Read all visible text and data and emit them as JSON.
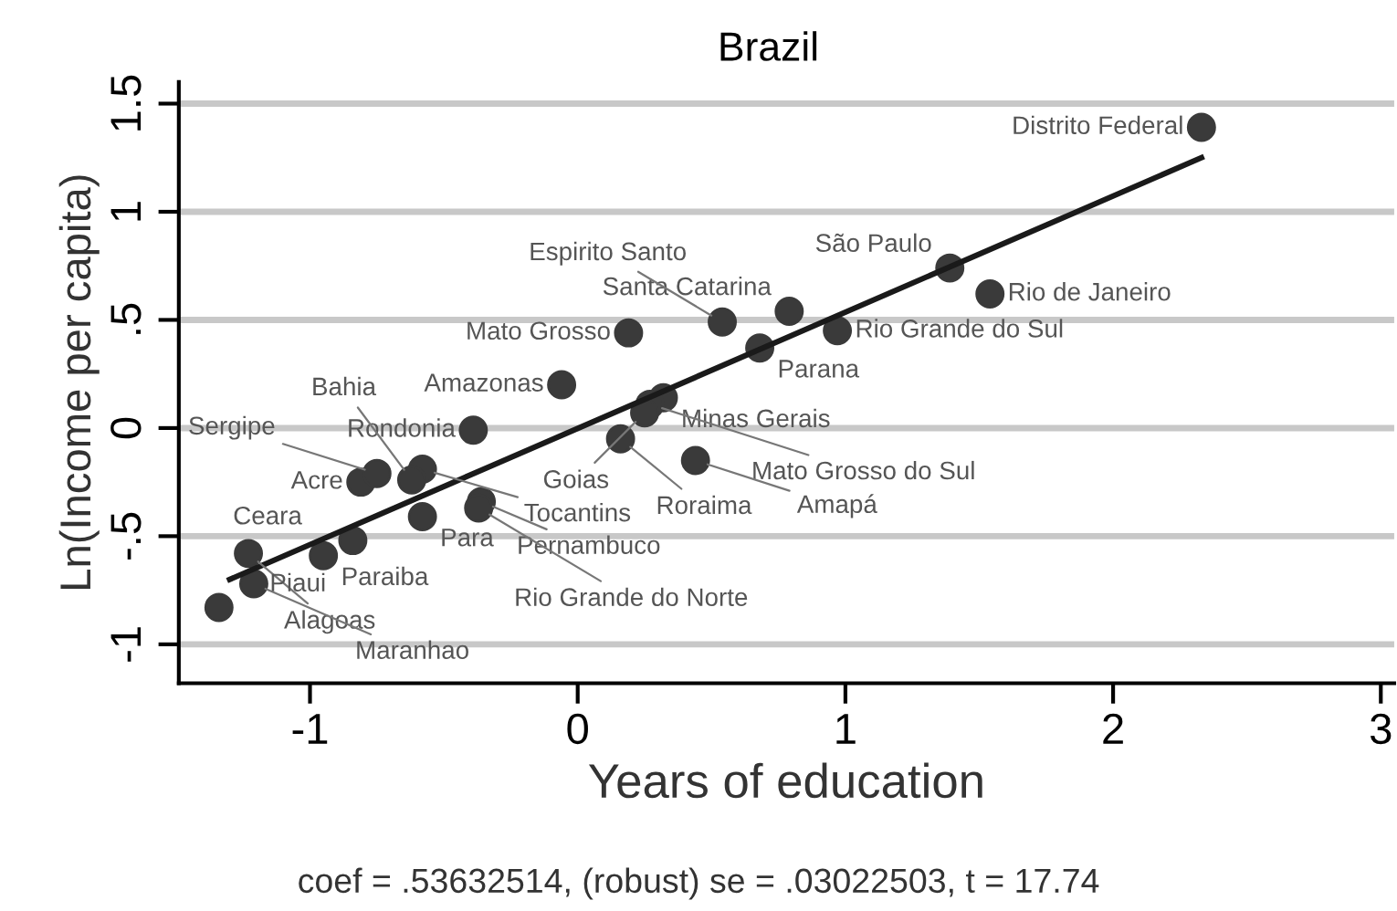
{
  "chart_data": {
    "type": "scatter",
    "title": "Brazil",
    "xlabel": "Years of education",
    "ylabel": "Ln(Income per capita)",
    "xlim": [
      -1.49,
      3.05
    ],
    "ylim": [
      -1.18,
      1.6
    ],
    "xticks": [
      {
        "value": -1,
        "label": "-1"
      },
      0,
      1,
      2,
      3
    ],
    "yticks": [
      {
        "value": -1,
        "label": "-1"
      },
      {
        "value": -0.5,
        "label": "-.5"
      },
      0,
      {
        "value": 0.5,
        "label": ".5"
      },
      1,
      {
        "value": 1.5,
        "label": "1.5"
      }
    ],
    "grid": "y",
    "marker": "circle",
    "series": [
      {
        "type": "scatter",
        "color": "#3a3a3a",
        "x": [
          2.33,
          1.39,
          1.54,
          0.79,
          0.97,
          0.68,
          0.19,
          0.54,
          -0.06,
          0.32,
          0.27,
          0.25,
          -0.39,
          0.16,
          0.44,
          -0.58,
          -0.81,
          -0.75,
          -0.36,
          -0.37,
          -0.58,
          -0.84,
          -0.95,
          -1.23,
          -0.62,
          -1.21,
          -1.34
        ],
        "values": [
          1.39,
          0.74,
          0.62,
          0.54,
          0.45,
          0.37,
          0.44,
          0.49,
          0.2,
          0.14,
          0.11,
          0.07,
          -0.01,
          -0.05,
          -0.15,
          -0.19,
          -0.25,
          -0.21,
          -0.34,
          -0.37,
          -0.41,
          -0.52,
          -0.59,
          -0.58,
          -0.24,
          -0.72,
          -0.83
        ]
      },
      {
        "type": "line",
        "marker": "none",
        "color": "#1a1a1a",
        "x": [
          -1.3,
          2.33
        ],
        "values": [
          -0.7,
          1.25
        ]
      }
    ],
    "annotations": [
      {
        "text": "Distrito Federal",
        "x": 2.33,
        "y": 1.39
      },
      {
        "text": "São Paulo",
        "x": 1.39,
        "y": 0.74
      },
      {
        "text": "Rio de Janeiro",
        "x": 1.54,
        "y": 0.62
      },
      {
        "text": "Santa Catarina",
        "x": 0.79,
        "y": 0.54
      },
      {
        "text": "Rio Grande do Sul",
        "x": 0.97,
        "y": 0.45
      },
      {
        "text": "Parana",
        "x": 0.68,
        "y": 0.37
      },
      {
        "text": "Mato Grosso",
        "x": 0.19,
        "y": 0.44
      },
      {
        "text": "Espirito Santo",
        "x": 0.54,
        "y": 0.49
      },
      {
        "text": "Amazonas",
        "x": -0.06,
        "y": 0.2
      },
      {
        "text": "Minas Gerais",
        "x": 0.32,
        "y": 0.14
      },
      {
        "text": "Mato Grosso do Sul",
        "x": 0.27,
        "y": 0.11
      },
      {
        "text": "Goias",
        "x": 0.25,
        "y": 0.07
      },
      {
        "text": "Rondonia",
        "x": -0.39,
        "y": -0.01
      },
      {
        "text": "Roraima",
        "x": 0.16,
        "y": -0.05
      },
      {
        "text": "Amapá",
        "x": 0.44,
        "y": -0.15
      },
      {
        "text": "Tocantins",
        "x": -0.58,
        "y": -0.19
      },
      {
        "text": "Acre",
        "x": -0.81,
        "y": -0.25
      },
      {
        "text": "Sergipe",
        "x": -0.75,
        "y": -0.21
      },
      {
        "text": "Pernambuco",
        "x": -0.36,
        "y": -0.34
      },
      {
        "text": "Rio Grande do Norte",
        "x": -0.37,
        "y": -0.37
      },
      {
        "text": "Para",
        "x": -0.58,
        "y": -0.41
      },
      {
        "text": "Ceara",
        "x": -0.84,
        "y": -0.52
      },
      {
        "text": "Paraiba",
        "x": -0.95,
        "y": -0.59
      },
      {
        "text": "Alagoas",
        "x": -1.23,
        "y": -0.58
      },
      {
        "text": "Bahia",
        "x": -0.62,
        "y": -0.24
      },
      {
        "text": "Maranhao",
        "x": -1.21,
        "y": -0.72
      },
      {
        "text": "Piaui",
        "x": -1.34,
        "y": -0.83
      },
      "coef = .53632514, (robust) se = .03022503, t = 17.74"
    ]
  }
}
